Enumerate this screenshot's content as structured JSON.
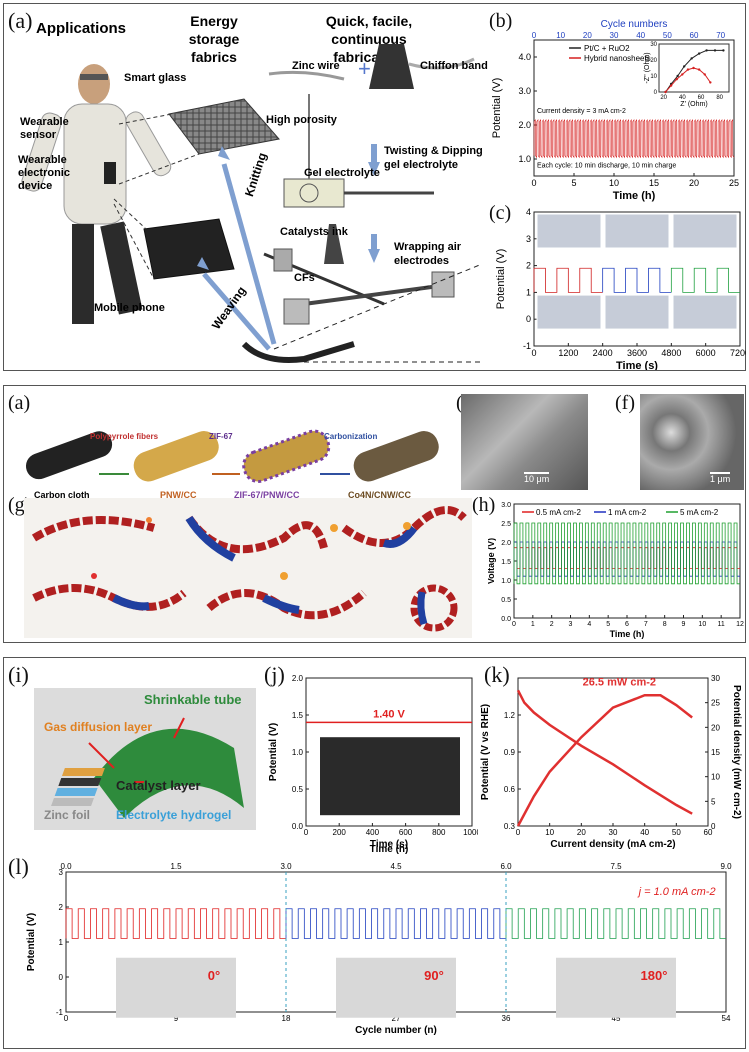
{
  "panel1": {
    "a_label": "(a)",
    "headings": [
      "Applications",
      "Energy storage fabrics",
      "Quick, facile, continuous fabrication"
    ],
    "callouts": [
      "Smart glass",
      "Wearable sensor",
      "Wearable electronic device",
      "Mobile phone",
      "Zinc wire",
      "Chiffon band",
      "High porosity",
      "Twisting & Dipping gel electrolyte",
      "Gel electrolyte",
      "Catalysts ink",
      "CFs",
      "Wrapping air electrodes",
      "Knitting",
      "Weaving"
    ],
    "b_label": "(b)",
    "c_label": "(c)"
  },
  "panel2": {
    "a_label": "(a)",
    "flow": [
      "Carbon cloth",
      "Polypyrrole fibers",
      "PNW/CC",
      "ZIF-67",
      "ZIF-67/PNW/CC",
      "Carbonization",
      "Co4N/CNW/CC"
    ],
    "e_label": "(e)",
    "f_label": "(f)",
    "e_scale": "10 μm",
    "f_scale": "1 μm",
    "g_label": "(g)",
    "h_label": "(h)"
  },
  "panel3": {
    "i_label": "(i)",
    "i_callouts": [
      "Shrinkable tube",
      "Gas diffusion layer",
      "Catalyst layer",
      "Zinc foil",
      "Electrolyte hydrogel"
    ],
    "j_label": "(j)",
    "k_label": "(k)",
    "l_label": "(l)",
    "angles": [
      "0°",
      "90°",
      "180°"
    ]
  },
  "chart_data": [
    {
      "id": "b",
      "type": "line",
      "title": "",
      "xlabel": "Time (h)",
      "ylabel": "Potential (V)",
      "top_axis_label": "Cycle numbers",
      "xlim": [
        0,
        25
      ],
      "ylim": [
        0.5,
        4.5
      ],
      "x_ticks": [
        0,
        5,
        10,
        15,
        20,
        25
      ],
      "y_ticks": [
        1.0,
        2.0,
        3.0,
        4.0
      ],
      "y_tick_labels": [
        "1.0",
        "2.0",
        "3.0",
        "4.0"
      ],
      "top_ticks": [
        0,
        10,
        20,
        30,
        40,
        50,
        60,
        70
      ],
      "annotations": [
        "Current density = 3 mA cm-2",
        "Each cycle: 10 min discharge, 10 min charge"
      ],
      "series": [
        {
          "values_description_low": 1.1,
          "charge": 2.1,
          "color": "#d62020"
        }
      ],
      "inset": {
        "xlabel": "Z' (Ohm)",
        "ylabel": "-Z'' (Ohm)",
        "x_ticks": [
          20,
          40,
          60,
          80
        ],
        "y_ticks": [
          0,
          10,
          20,
          30
        ],
        "series": [
          {
            "name": "Pt/C + RuO2",
            "color": "#222222",
            "x": [
              22,
              28,
              35,
              42,
              50,
              58,
              66,
              75,
              84
            ],
            "y": [
              0,
              5,
              10,
              16,
              21,
              24,
              26,
              26,
              26
            ]
          },
          {
            "name": "Hybrid nanosheets",
            "color": "#d62020",
            "x": [
              22,
              28,
              34,
              40,
              46,
              52,
              58,
              64,
              70
            ],
            "y": [
              0,
              4,
              8,
              11,
              14,
              15,
              14,
              11,
              6
            ]
          }
        ]
      }
    },
    {
      "id": "c",
      "type": "line",
      "xlabel": "Time (s)",
      "ylabel": "Potential (V)",
      "xlim": [
        0,
        7200
      ],
      "ylim": [
        -1,
        4
      ],
      "x_ticks": [
        0,
        1200,
        2400,
        3600,
        4800,
        6000,
        7200
      ],
      "y_ticks": [
        -1,
        0,
        1,
        2,
        3,
        4
      ]
    },
    {
      "id": "h",
      "type": "line",
      "xlabel": "Time (h)",
      "ylabel": "Voltage (V)",
      "xlim": [
        0,
        12
      ],
      "ylim": [
        0.0,
        3.0
      ],
      "x_ticks": [
        0,
        1,
        2,
        3,
        4,
        5,
        6,
        7,
        8,
        9,
        10,
        11,
        12
      ],
      "y_ticks": [
        0.0,
        0.5,
        1.0,
        1.5,
        2.0,
        2.5,
        3.0
      ],
      "y_tick_labels": [
        "0.0",
        "0.5",
        "1.0",
        "1.5",
        "2.0",
        "2.5",
        "3.0"
      ],
      "series": [
        {
          "name": "0.5 mA cm-2",
          "color": "#e02020",
          "low": 1.3,
          "high": 1.85
        },
        {
          "name": "1 mA cm-2",
          "color": "#2030c0",
          "low": 1.1,
          "high": 2.0
        },
        {
          "name": "5 mA cm-2",
          "color": "#20a030",
          "low": 0.9,
          "high": 2.5
        }
      ]
    },
    {
      "id": "j",
      "type": "line",
      "xlabel": "Time (s)",
      "ylabel": "Potential (V)",
      "xlim": [
        0,
        1000
      ],
      "ylim": [
        0.0,
        2.0
      ],
      "x_ticks": [
        0,
        200,
        400,
        600,
        800,
        1000
      ],
      "y_ticks": [
        0.0,
        0.5,
        1.0,
        1.5,
        2.0
      ],
      "y_tick_labels": [
        "0.0",
        "0.5",
        "1.0",
        "1.5",
        "2.0"
      ],
      "annotations": [
        "1.40 V"
      ],
      "series": [
        {
          "color": "#e02020",
          "x": [
            0,
            1000
          ],
          "y": [
            1.4,
            1.4
          ]
        }
      ]
    },
    {
      "id": "k",
      "type": "line",
      "xlabel": "Current density (mA cm-2)",
      "ylabel": "Potential (V vs RHE)",
      "y2label": "Potential density (mW cm-2)",
      "xlim": [
        0,
        60
      ],
      "ylim": [
        0.3,
        1.5
      ],
      "y2lim": [
        0,
        30
      ],
      "x_ticks": [
        0,
        10,
        20,
        30,
        40,
        50,
        60
      ],
      "y_ticks": [
        0.3,
        0.6,
        0.9,
        1.2
      ],
      "y_tick_labels": [
        "0.3",
        "0.6",
        "0.9",
        "1.2"
      ],
      "y2_ticks": [
        0,
        5,
        10,
        15,
        20,
        25,
        30
      ],
      "annotations": [
        "26.5 mW cm-2"
      ],
      "series": [
        {
          "name": "polarization",
          "color": "#e03030",
          "x": [
            0,
            2,
            5,
            10,
            20,
            30,
            40,
            50,
            55
          ],
          "y": [
            1.4,
            1.3,
            1.22,
            1.12,
            0.95,
            0.8,
            0.63,
            0.47,
            0.4
          ]
        },
        {
          "name": "power",
          "color": "#e03030",
          "x": [
            0,
            5,
            10,
            20,
            30,
            40,
            45,
            50,
            55
          ],
          "y2": [
            0,
            6,
            11,
            18,
            24,
            26.5,
            26.5,
            24.5,
            22
          ]
        }
      ]
    },
    {
      "id": "l",
      "type": "line",
      "xlabel": "Cycle number (n)",
      "ylabel": "Potential (V)",
      "top_axis_label": "Time (h)",
      "xlim": [
        0,
        54
      ],
      "ylim": [
        -1,
        3
      ],
      "x_ticks": [
        0,
        9,
        18,
        27,
        36,
        45,
        54
      ],
      "top_ticks": [
        "0.0",
        "1.5",
        "3.0",
        "4.5",
        "6.0",
        "7.5",
        "9.0"
      ],
      "y_ticks": [
        -1,
        0,
        1,
        2,
        3
      ],
      "annotations": [
        "j = 1.0 mA cm-2"
      ],
      "series": [
        {
          "name": "0°",
          "color": "#e02020",
          "low": 1.1,
          "high": 1.95
        },
        {
          "name": "90°",
          "color": "#2040c0",
          "low": 1.1,
          "high": 1.95
        },
        {
          "name": "180°",
          "color": "#20a050",
          "low": 1.1,
          "high": 1.95
        }
      ]
    }
  ]
}
